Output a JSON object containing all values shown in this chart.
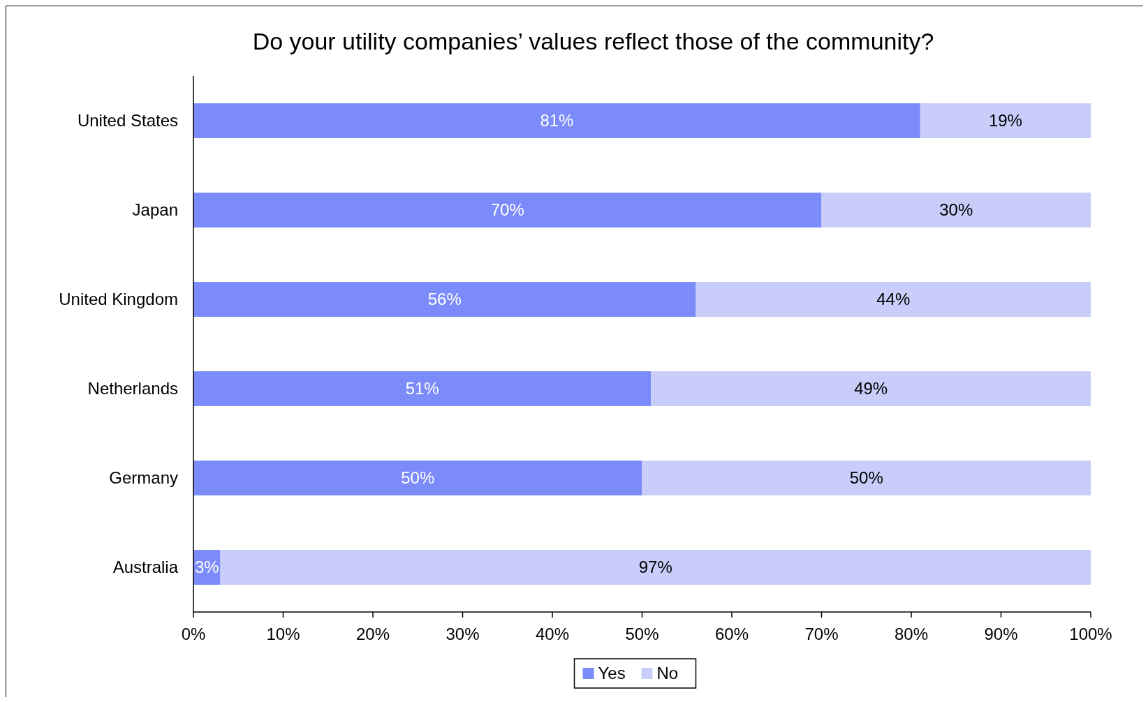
{
  "chart_data": {
    "type": "bar",
    "orientation": "horizontal",
    "stacked": true,
    "title": "Do your utility companies’ values reflect those of the community?",
    "categories": [
      "United States",
      "Japan",
      "United Kingdom",
      "Netherlands",
      "Germany",
      "Australia"
    ],
    "series": [
      {
        "name": "Yes",
        "color": "#7b8bfa",
        "values": [
          81,
          70,
          56,
          51,
          50,
          3
        ],
        "value_labels": [
          "81%",
          "70%",
          "56%",
          "51%",
          "50%",
          "3%"
        ]
      },
      {
        "name": "No",
        "color": "#c8cdfa",
        "values": [
          19,
          30,
          44,
          49,
          50,
          97
        ],
        "value_labels": [
          "19%",
          "30%",
          "44%",
          "49%",
          "50%",
          "97%"
        ]
      }
    ],
    "xlim": [
      0,
      100
    ],
    "xticks": [
      {
        "value": 0,
        "label": "0%"
      },
      {
        "value": 10,
        "label": "10%"
      },
      {
        "value": 20,
        "label": "20%"
      },
      {
        "value": 30,
        "label": "30%"
      },
      {
        "value": 40,
        "label": "40%"
      },
      {
        "value": 50,
        "label": "50%"
      },
      {
        "value": 60,
        "label": "60%"
      },
      {
        "value": 70,
        "label": "70%"
      },
      {
        "value": 80,
        "label": "80%"
      },
      {
        "value": 90,
        "label": "90%"
      },
      {
        "value": 100,
        "label": "100%"
      }
    ],
    "legend": "bottom",
    "grid": false
  }
}
